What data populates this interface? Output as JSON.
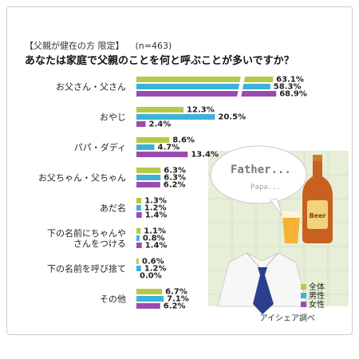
{
  "header": {
    "subtitle": "【父親が健在の方 限定】",
    "n": "(n=463)",
    "title": "あなたは家庭で父親のことを何と呼ぶことが多いですか？"
  },
  "illustration": {
    "bubble_text_main": "Father...",
    "bubble_text_sub": "Papa...",
    "bottle_label": "Beer"
  },
  "source": "アイシェア調べ",
  "colors": {
    "all": "#b5c944",
    "male": "#3cb2d8",
    "female": "#9a4bb2"
  },
  "chart_data": {
    "type": "bar",
    "orientation": "horizontal",
    "unit": "%",
    "categories": [
      [
        "お父さん・父さん"
      ],
      [
        "おやじ"
      ],
      [
        "パパ・ダディ"
      ],
      [
        "お父ちゃん・父ちゃん"
      ],
      [
        "あだ名"
      ],
      [
        "下の名前にちゃんや",
        "さんをつける"
      ],
      [
        "下の名前を呼び捨て"
      ],
      [
        "その他"
      ]
    ],
    "series": [
      {
        "name": "全体",
        "values": [
          63.1,
          12.3,
          8.6,
          6.3,
          1.3,
          1.1,
          0.6,
          6.7
        ],
        "labels": [
          "63.1%",
          "12.3%",
          "8.6%",
          "6.3%",
          "1.3%",
          "1.1%",
          "0.6%",
          "6.7%"
        ]
      },
      {
        "name": "男性",
        "values": [
          58.3,
          20.5,
          4.7,
          6.3,
          1.2,
          0.8,
          1.2,
          7.1
        ],
        "labels": [
          "58.3%",
          "20.5%",
          "4.7%",
          "6.3%",
          "1.2%",
          "0.8%",
          "1.2%",
          "7.1%"
        ]
      },
      {
        "name": "女性",
        "values": [
          68.9,
          2.4,
          13.4,
          6.2,
          1.4,
          1.4,
          0.0,
          6.2
        ],
        "labels": [
          "68.9%",
          "2.4%",
          "13.4%",
          "6.2%",
          "1.4%",
          "1.4%",
          "0.0%",
          "6.2%"
        ]
      }
    ],
    "axis_break": true,
    "grid": false,
    "legend_position": "right"
  }
}
